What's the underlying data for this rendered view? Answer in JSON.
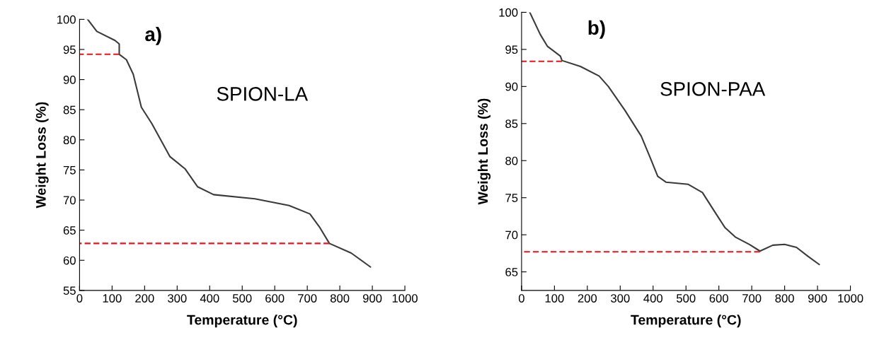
{
  "chart_data": [
    {
      "type": "line",
      "xlabel": "Temperature (°C)",
      "ylabel": "Weight Loss (%)",
      "xlim": [
        0,
        1000
      ],
      "ylim": [
        55,
        100
      ],
      "xticks": [
        0,
        100,
        200,
        300,
        400,
        500,
        600,
        700,
        800,
        900,
        1000
      ],
      "yticks": [
        55,
        60,
        65,
        70,
        75,
        80,
        85,
        90,
        95,
        100
      ],
      "grid": false,
      "annotations": [
        "a)",
        "SPION-LA"
      ],
      "series": [
        {
          "color": "#3a3a3a",
          "line_style": "solid",
          "x": [
            25,
            53,
            109,
            122,
            122,
            144,
            165,
            190,
            222,
            278,
            324,
            363,
            412,
            539,
            644,
            708,
            739,
            768,
            835,
            894
          ],
          "values": [
            100,
            98.0,
            96.5,
            95.9,
            94.2,
            93.3,
            90.9,
            85.4,
            82.7,
            77.2,
            75.2,
            72.2,
            70.9,
            70.2,
            69.1,
            67.7,
            65.4,
            62.8,
            61.2,
            58.9
          ]
        },
        {
          "color": "#e8141c",
          "line_style": "dashed",
          "x": [
            0,
            122
          ],
          "values": [
            94.2,
            94.2
          ]
        },
        {
          "color": "#e8141c",
          "line_style": "dashed",
          "x": [
            0,
            768
          ],
          "values": [
            62.8,
            62.8
          ]
        }
      ]
    },
    {
      "type": "line",
      "xlabel": "Temperature (°C)",
      "ylabel": "Weight Loss (%)",
      "xlim": [
        0,
        1000
      ],
      "ylim": [
        62.5,
        100
      ],
      "xticks": [
        0,
        100,
        200,
        300,
        400,
        500,
        600,
        700,
        800,
        900,
        1000
      ],
      "yticks": [
        65,
        70,
        75,
        80,
        85,
        90,
        95,
        100
      ],
      "grid": false,
      "annotations": [
        "b)",
        "SPION-PAA"
      ],
      "series": [
        {
          "color": "#3a3a3a",
          "line_style": "solid",
          "x": [
            25,
            57,
            79,
            118,
            123,
            179,
            236,
            264,
            314,
            364,
            393,
            414,
            439,
            507,
            550,
            586,
            618,
            650,
            693,
            725,
            764,
            800,
            836,
            871,
            905
          ],
          "values": [
            100,
            97.0,
            95.4,
            94.1,
            93.5,
            92.7,
            91.4,
            90.0,
            86.8,
            83.3,
            80.2,
            77.9,
            77.1,
            76.8,
            75.7,
            73.2,
            71.0,
            69.7,
            68.7,
            67.8,
            68.6,
            68.7,
            68.3,
            67.1,
            66.0
          ]
        },
        {
          "color": "#e8141c",
          "line_style": "dashed",
          "x": [
            0,
            123
          ],
          "values": [
            93.4,
            93.4
          ]
        },
        {
          "color": "#e8141c",
          "line_style": "dashed",
          "x": [
            0,
            725
          ],
          "values": [
            67.7,
            67.7
          ]
        }
      ]
    }
  ]
}
